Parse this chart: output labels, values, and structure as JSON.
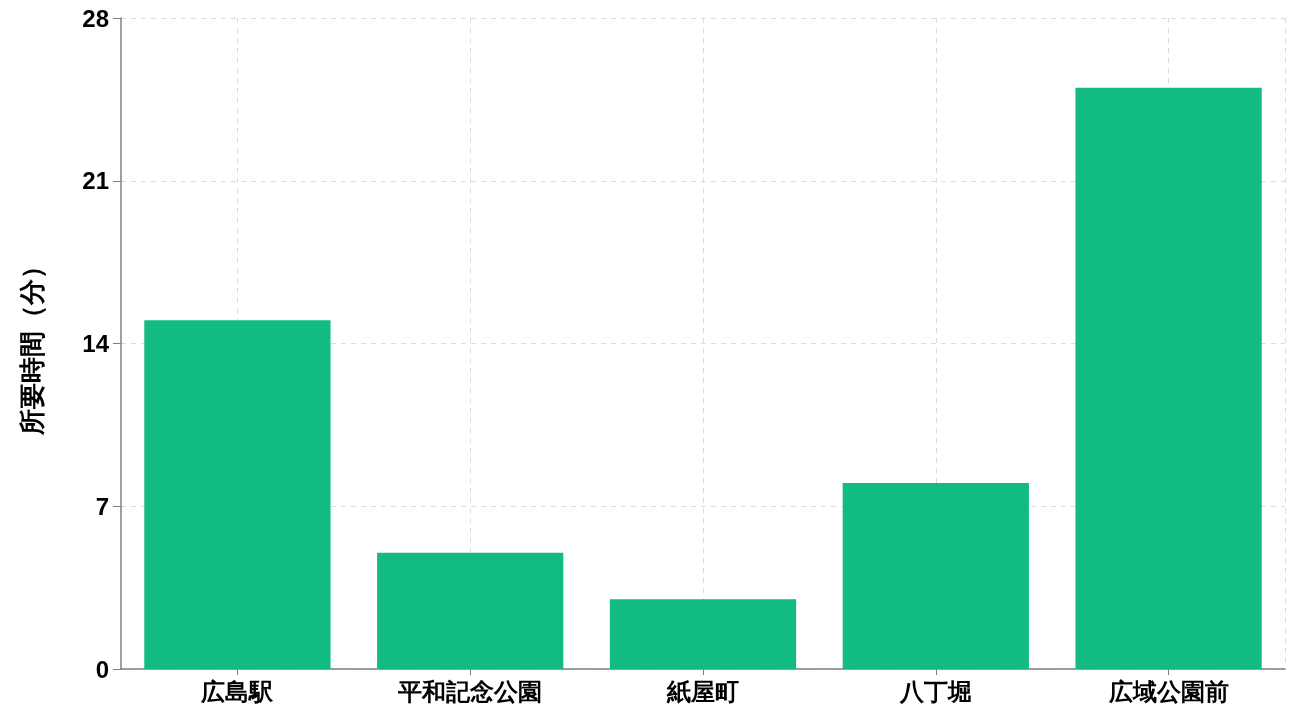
{
  "chart_data": {
    "type": "bar",
    "ylabel": "所要時間（分）",
    "categories": [
      "広島駅",
      "平和記念公園",
      "紙屋町",
      "八丁堀",
      "広域公園前"
    ],
    "values": [
      15,
      5,
      3,
      8,
      25
    ],
    "color": "#12bb84",
    "ylim": [
      0,
      28
    ],
    "yticks": [
      0,
      7,
      14,
      21,
      28
    ],
    "grid": true
  }
}
